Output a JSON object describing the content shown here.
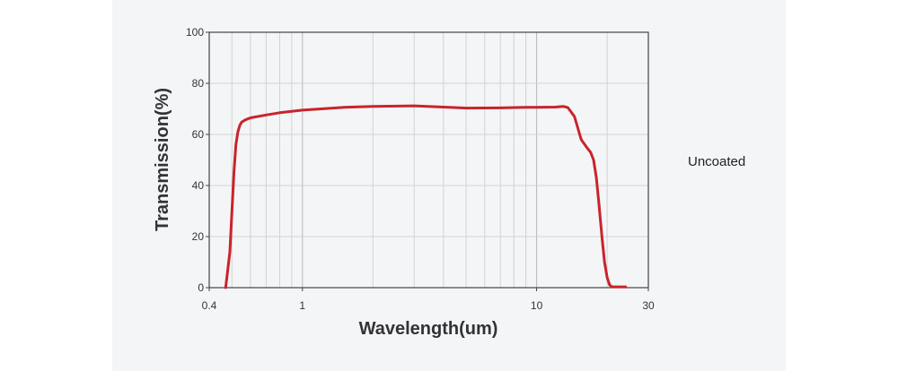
{
  "chart_data": {
    "type": "line",
    "x_scale": "log",
    "xlim": [
      0.4,
      30
    ],
    "ylim": [
      0,
      100
    ],
    "xlabel": "Wavelength(um)",
    "ylabel": "Transmission(%)",
    "x_ticks": [
      0.4,
      1,
      10,
      30
    ],
    "x_tick_labels": [
      "0.4",
      "1",
      "10",
      "30"
    ],
    "y_ticks": [
      0,
      20,
      40,
      60,
      80,
      100
    ],
    "y_tick_labels": [
      "0",
      "20",
      "40",
      "60",
      "80",
      "100"
    ],
    "grid": true,
    "line_color": "#c8242b",
    "series": [
      {
        "x": [
          0.47,
          0.49,
          0.5,
          0.51,
          0.52,
          0.53,
          0.54,
          0.55,
          0.57,
          0.6,
          0.7,
          0.8,
          1.0,
          1.5,
          2.0,
          3.0,
          4.0,
          5.0,
          7.0,
          9.0,
          10.0,
          12.0,
          13.0,
          13.6,
          14.5,
          15.5,
          16.5,
          17.0,
          17.5,
          18.0,
          18.5,
          19.0,
          19.5,
          20.0,
          20.5,
          21.0,
          22.5,
          24.0
        ],
        "y": [
          0,
          14,
          30,
          45,
          56,
          61,
          63.5,
          64.8,
          65.7,
          66.5,
          67.6,
          68.5,
          69.5,
          70.6,
          71.0,
          71.2,
          70.7,
          70.3,
          70.4,
          70.6,
          70.6,
          70.7,
          71.0,
          70.5,
          67.0,
          58.0,
          54.5,
          53.0,
          50.0,
          43.0,
          32.0,
          20.0,
          10.0,
          4.0,
          1.0,
          0.3,
          0.3,
          0.3
        ]
      }
    ]
  },
  "side_label": "Uncoated"
}
